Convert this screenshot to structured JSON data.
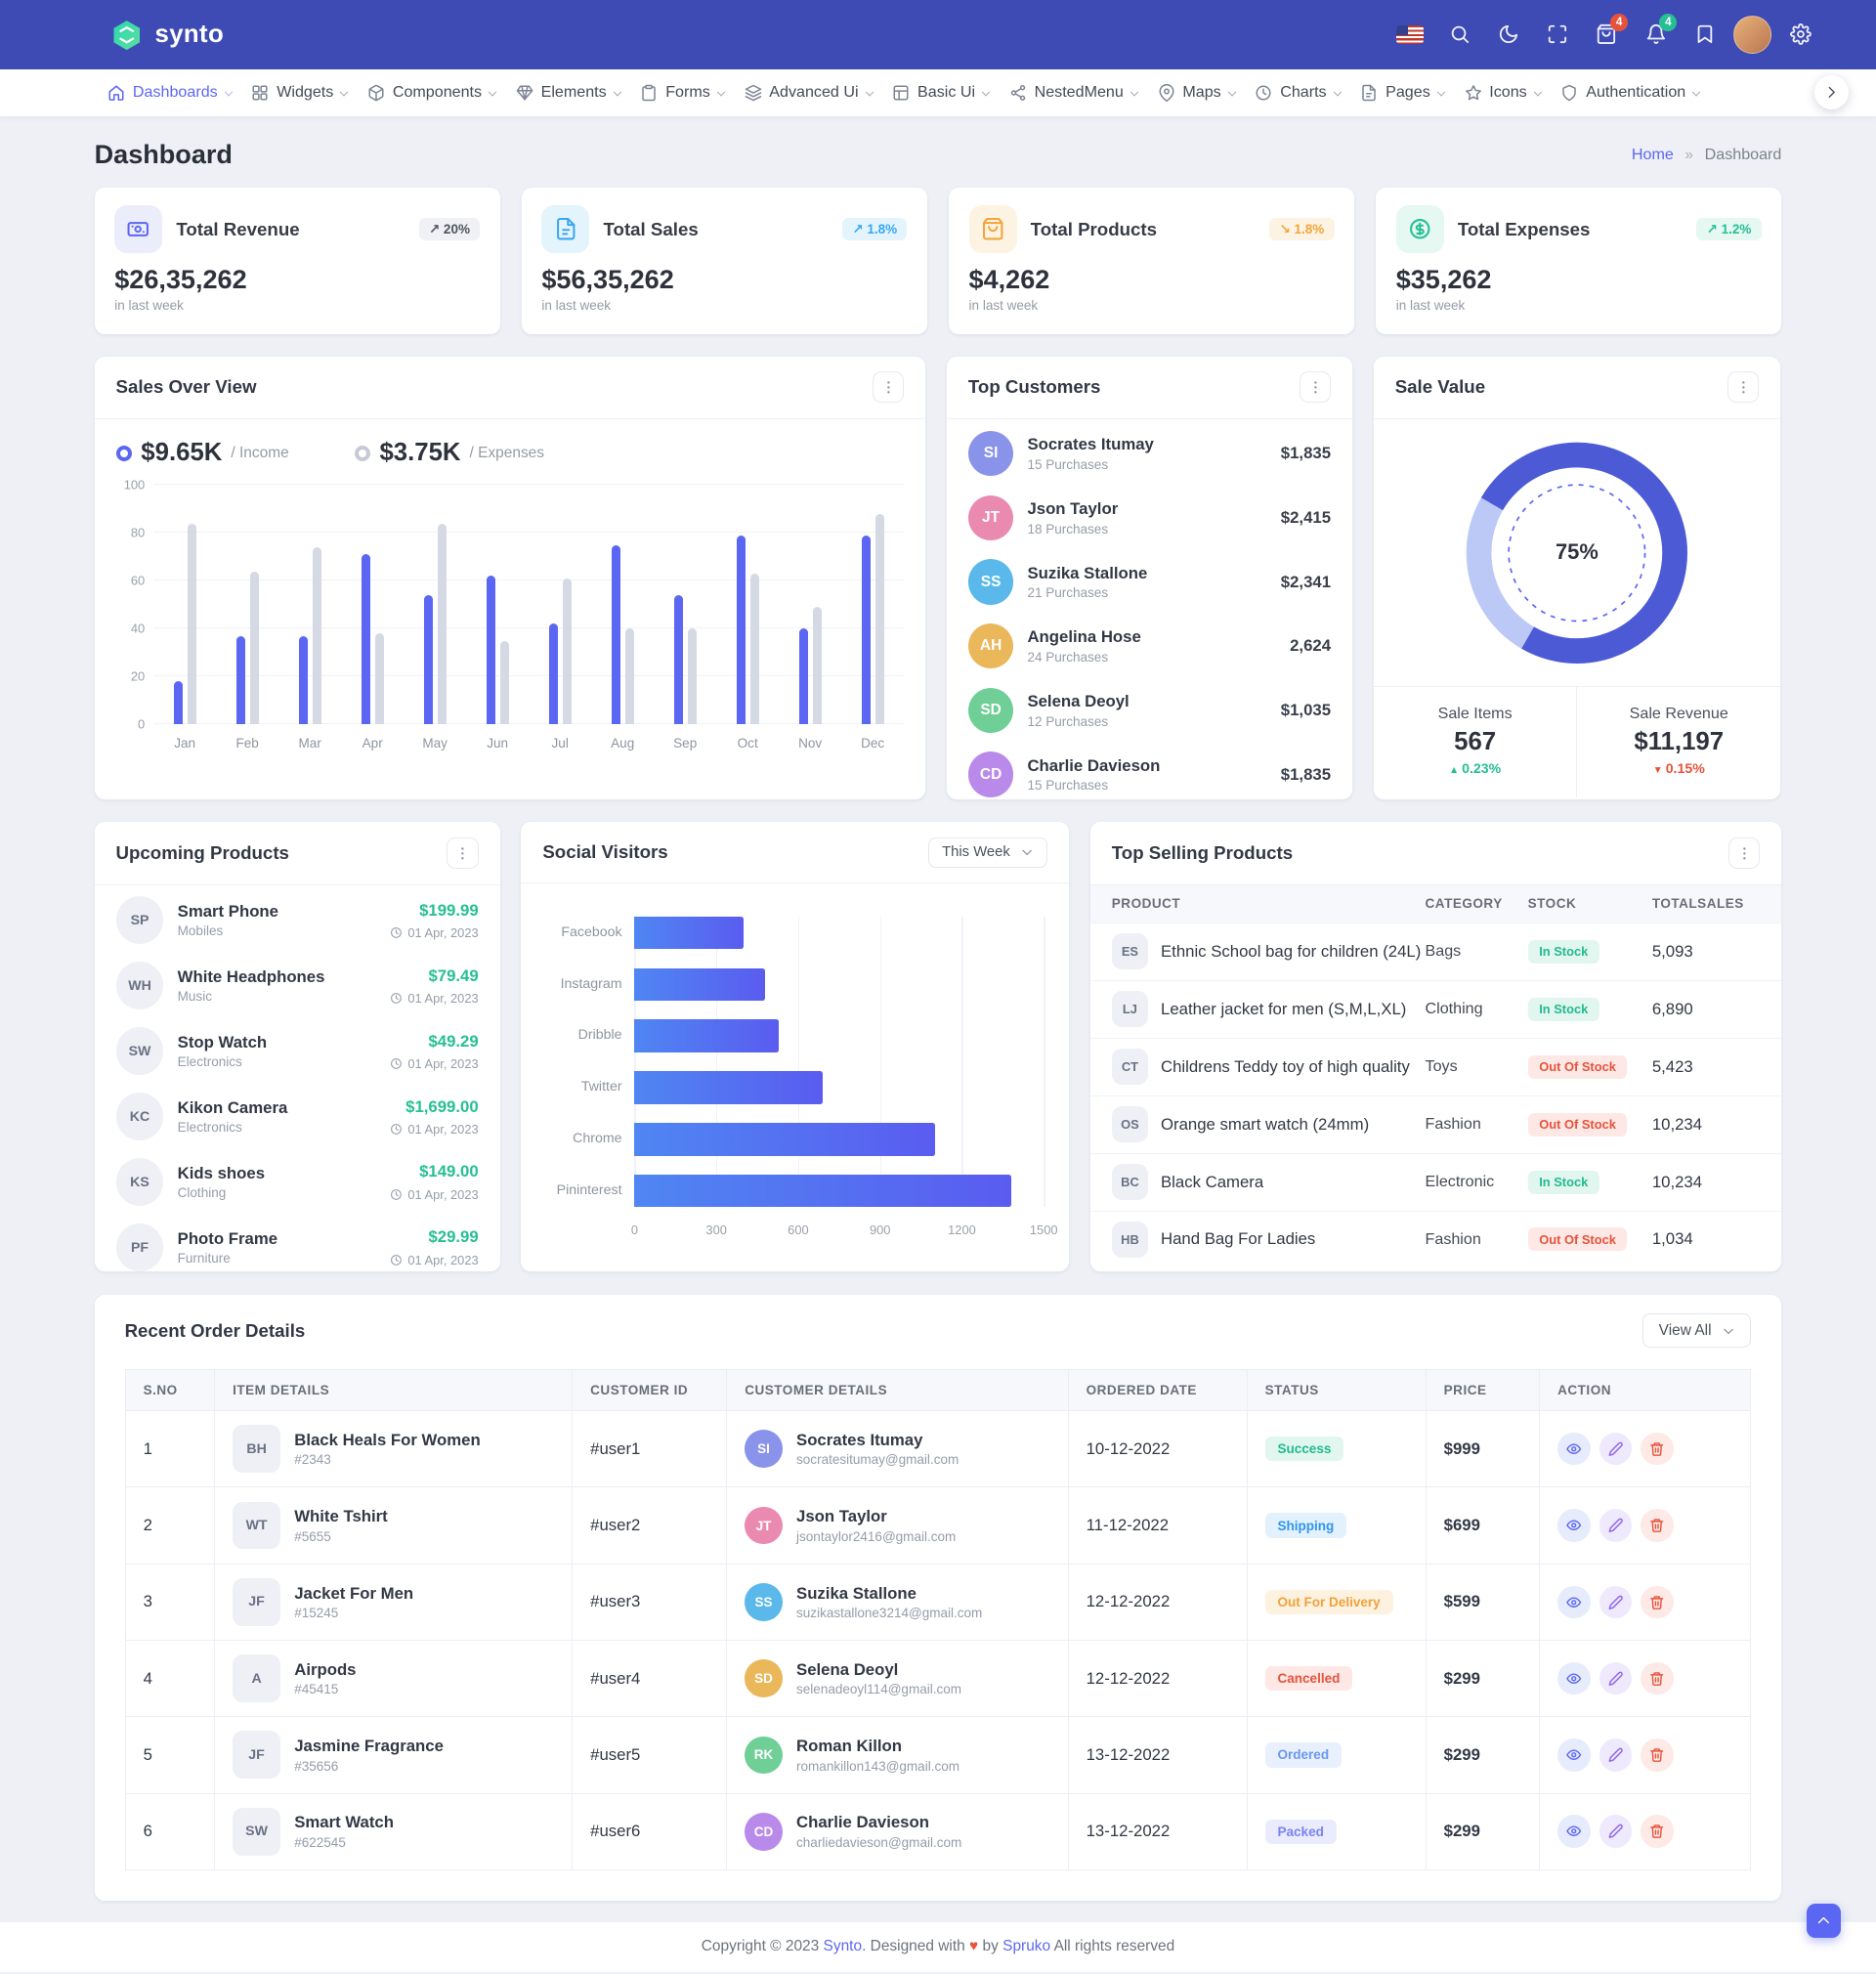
{
  "colors": {
    "primary": "#5b67f2",
    "header_bg": "#3e4bb5",
    "success": "#26bf94",
    "danger": "#e6533c",
    "warning": "#f3a43b",
    "info": "#38a7f0",
    "page_bg": "#eef0f6"
  },
  "brand": {
    "name": "synto"
  },
  "topbar": {
    "cart_badge": "4",
    "notification_badge": "4"
  },
  "nav": {
    "items": [
      {
        "label": "Dashboards"
      },
      {
        "label": "Widgets"
      },
      {
        "label": "Components"
      },
      {
        "label": "Elements"
      },
      {
        "label": "Forms"
      },
      {
        "label": "Advanced Ui"
      },
      {
        "label": "Basic Ui"
      },
      {
        "label": "NestedMenu"
      },
      {
        "label": "Maps"
      },
      {
        "label": "Charts"
      },
      {
        "label": "Pages"
      },
      {
        "label": "Icons"
      },
      {
        "label": "Authentication"
      }
    ]
  },
  "page": {
    "title": "Dashboard",
    "breadcrumb": {
      "home": "Home",
      "sep": "»",
      "current": "Dashboard"
    }
  },
  "stats": [
    {
      "title": "Total Revenue",
      "value": "$26,35,262",
      "period": "in last week",
      "change": "20%",
      "direction": "up"
    },
    {
      "title": "Total Sales",
      "value": "$56,35,262",
      "period": "in last week",
      "change": "1.8%",
      "direction": "up"
    },
    {
      "title": "Total Products",
      "value": "$4,262",
      "period": "in last week",
      "change": "1.8%",
      "direction": "down"
    },
    {
      "title": "Total Expenses",
      "value": "$35,262",
      "period": "in last week",
      "change": "1.2%",
      "direction": "up"
    }
  ],
  "sales_overview": {
    "title": "Sales Over View",
    "income_value": "$9.65K",
    "income_label": "/ Income",
    "expenses_value": "$3.75K",
    "expenses_label": "/ Expenses"
  },
  "top_customers": {
    "title": "Top Customers",
    "items": [
      {
        "name": "Socrates Itumay",
        "purchases": "15 Purchases",
        "amount": "$1,835"
      },
      {
        "name": "Json Taylor",
        "purchases": "18 Purchases",
        "amount": "$2,415"
      },
      {
        "name": "Suzika Stallone",
        "purchases": "21 Purchases",
        "amount": "$2,341"
      },
      {
        "name": "Angelina Hose",
        "purchases": "24 Purchases",
        "amount": "2,624"
      },
      {
        "name": "Selena Deoyl",
        "purchases": "12 Purchases",
        "amount": "$1,035"
      },
      {
        "name": "Charlie Davieson",
        "purchases": "15 Purchases",
        "amount": "$1,835"
      }
    ]
  },
  "sale_value": {
    "title": "Sale Value",
    "percent_label": "75%",
    "sale_items_label": "Sale Items",
    "sale_items_value": "567",
    "sale_items_change": "0.23%",
    "sale_items_dir": "up",
    "sale_revenue_label": "Sale Revenue",
    "sale_revenue_value": "$11,197",
    "sale_revenue_change": "0.15%",
    "sale_revenue_dir": "down"
  },
  "upcoming_products": {
    "title": "Upcoming Products",
    "items": [
      {
        "name": "Smart Phone",
        "category": "Mobiles",
        "price": "$199.99",
        "date": "01 Apr, 2023"
      },
      {
        "name": "White Headphones",
        "category": "Music",
        "price": "$79.49",
        "date": "01 Apr, 2023"
      },
      {
        "name": "Stop Watch",
        "category": "Electronics",
        "price": "$49.29",
        "date": "01 Apr, 2023"
      },
      {
        "name": "Kikon Camera",
        "category": "Electronics",
        "price": "$1,699.00",
        "date": "01 Apr, 2023"
      },
      {
        "name": "Kids shoes",
        "category": "Clothing",
        "price": "$149.00",
        "date": "01 Apr, 2023"
      },
      {
        "name": "Photo Frame",
        "category": "Furniture",
        "price": "$29.99",
        "date": "01 Apr, 2023"
      }
    ]
  },
  "social_visitors": {
    "title": "Social Visitors",
    "filter": "This Week"
  },
  "top_selling": {
    "title": "Top Selling Products",
    "headers": {
      "product": "PRODUCT",
      "category": "CATEGORY",
      "stock": "STOCK",
      "totalsales": "TOTALSALES"
    },
    "rows": [
      {
        "product": "Ethnic School bag for children (24L)",
        "category": "Bags",
        "stock": "In Stock",
        "stock_state": "in",
        "totalsales": "5,093"
      },
      {
        "product": "Leather jacket for men (S,M,L,XL)",
        "category": "Clothing",
        "stock": "In Stock",
        "stock_state": "in",
        "totalsales": "6,890"
      },
      {
        "product": "Childrens Teddy toy of high quality",
        "category": "Toys",
        "stock": "Out Of Stock",
        "stock_state": "out",
        "totalsales": "5,423"
      },
      {
        "product": "Orange smart watch (24mm)",
        "category": "Fashion",
        "stock": "Out Of Stock",
        "stock_state": "out",
        "totalsales": "10,234"
      },
      {
        "product": "Black Camera",
        "category": "Electronic",
        "stock": "In Stock",
        "stock_state": "in",
        "totalsales": "10,234"
      },
      {
        "product": "Hand Bag For Ladies",
        "category": "Fashion",
        "stock": "Out Of Stock",
        "stock_state": "out",
        "totalsales": "1,034"
      }
    ]
  },
  "orders": {
    "title": "Recent Order Details",
    "view_all": "View All",
    "headers": {
      "sno": "S.NO",
      "item": "ITEM DETAILS",
      "customer_id": "CUSTOMER ID",
      "customer": "CUSTOMER DETAILS",
      "date": "ORDERED DATE",
      "status": "STATUS",
      "price": "PRICE",
      "action": "ACTION"
    },
    "rows": [
      {
        "sno": "1",
        "item": "Black Heals For Women",
        "item_code": "#2343",
        "customer_id": "#user1",
        "customer": "Socrates Itumay",
        "email": "socratesitumay@gmail.com",
        "date": "10-12-2022",
        "status": "Success",
        "status_type": "success",
        "price": "$999"
      },
      {
        "sno": "2",
        "item": "White Tshirt",
        "item_code": "#5655",
        "customer_id": "#user2",
        "customer": "Json Taylor",
        "email": "jsontaylor2416@gmail.com",
        "date": "11-12-2022",
        "status": "Shipping",
        "status_type": "shipping",
        "price": "$699"
      },
      {
        "sno": "3",
        "item": "Jacket For Men",
        "item_code": "#15245",
        "customer_id": "#user3",
        "customer": "Suzika Stallone",
        "email": "suzikastallone3214@gmail.com",
        "date": "12-12-2022",
        "status": "Out For Delivery",
        "status_type": "delivery",
        "price": "$599"
      },
      {
        "sno": "4",
        "item": "Airpods",
        "item_code": "#45415",
        "customer_id": "#user4",
        "customer": "Selena Deoyl",
        "email": "selenadeoyl114@gmail.com",
        "date": "12-12-2022",
        "status": "Cancelled",
        "status_type": "cancelled",
        "price": "$299"
      },
      {
        "sno": "5",
        "item": "Jasmine Fragrance",
        "item_code": "#35656",
        "customer_id": "#user5",
        "customer": "Roman Killon",
        "email": "romankillon143@gmail.com",
        "date": "13-12-2022",
        "status": "Ordered",
        "status_type": "ordered",
        "price": "$299"
      },
      {
        "sno": "6",
        "item": "Smart Watch",
        "item_code": "#622545",
        "customer_id": "#user6",
        "customer": "Charlie Davieson",
        "email": "charliedavieson@gmail.com",
        "date": "13-12-2022",
        "status": "Packed",
        "status_type": "packed",
        "price": "$299"
      }
    ]
  },
  "footer": {
    "copyright": "Copyright © 2023",
    "brand": "Synto.",
    "middle": "Designed with",
    "heart": "♥",
    "by": "by",
    "designer": "Spruko",
    "rights": "All rights reserved"
  },
  "chart_data": [
    {
      "type": "bar",
      "title": "Sales Over View",
      "categories": [
        "Jan",
        "Feb",
        "Mar",
        "Apr",
        "May",
        "Jun",
        "Jul",
        "Aug",
        "Sep",
        "Oct",
        "Nov",
        "Dec"
      ],
      "series": [
        {
          "name": "Income",
          "total_label": "$9.65K",
          "values": [
            18,
            37,
            37,
            71,
            54,
            62,
            42,
            75,
            54,
            79,
            40,
            79
          ]
        },
        {
          "name": "Expenses",
          "total_label": "$3.75K",
          "values": [
            84,
            64,
            74,
            38,
            84,
            35,
            61,
            40,
            40,
            63,
            49,
            88
          ]
        }
      ],
      "ylim": [
        0,
        100
      ],
      "yticks": [
        0,
        20,
        40,
        60,
        80,
        100
      ],
      "legend_position": "top",
      "grid": true
    },
    {
      "type": "bar",
      "orientation": "horizontal",
      "title": "Social Visitors",
      "categories": [
        "Facebook",
        "Instagram",
        "Dribble",
        "Twitter",
        "Chrome",
        "Pininterest"
      ],
      "values": [
        400,
        480,
        530,
        690,
        1100,
        1380
      ],
      "xlim": [
        0,
        1500
      ],
      "xticks": [
        0,
        300,
        600,
        900,
        1200,
        1500
      ],
      "grid": true
    },
    {
      "type": "pie",
      "title": "Sale Value",
      "percent": 75,
      "center_label": "75%"
    }
  ]
}
